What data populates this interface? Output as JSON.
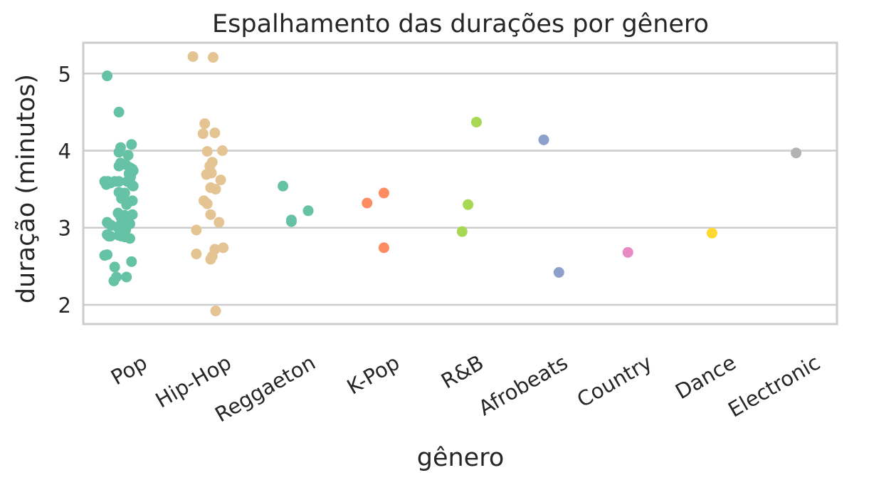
{
  "chart_data": {
    "type": "scatter",
    "title": "Espalhamento das durações por gênero",
    "xlabel": "gênero",
    "ylabel": "duração (minutos)",
    "ylim": [
      1.75,
      5.4
    ],
    "yticks": [
      2,
      3,
      4,
      5
    ],
    "grid": true,
    "categories": [
      "Pop",
      "Hip-Hop",
      "Reggaeton",
      "K-Pop",
      "R&B",
      "Afrobeats",
      "Country",
      "Dance",
      "Electronic"
    ],
    "colors": [
      "#66c2a5",
      "#e5c494",
      "#66c2a5",
      "#fc8d62",
      "#a6d854",
      "#8da0cb",
      "#e78ac3",
      "#ffd92f",
      "#b3b3b3"
    ],
    "series": [
      {
        "category": "Pop",
        "points": [
          [
            -0.19,
            4.97
          ],
          [
            -0.05,
            4.5
          ],
          [
            0.1,
            4.08
          ],
          [
            -0.03,
            4.04
          ],
          [
            -0.05,
            3.98
          ],
          [
            0.06,
            3.94
          ],
          [
            0.03,
            3.82
          ],
          [
            -0.03,
            3.84
          ],
          [
            0.08,
            3.78
          ],
          [
            0.11,
            3.76
          ],
          [
            -0.05,
            3.8
          ],
          [
            0.12,
            3.74
          ],
          [
            0.07,
            3.7
          ],
          [
            0.09,
            3.66
          ],
          [
            -0.22,
            3.6
          ],
          [
            -0.18,
            3.6
          ],
          [
            -0.15,
            3.58
          ],
          [
            -0.1,
            3.6
          ],
          [
            -0.05,
            3.6
          ],
          [
            0.05,
            3.6
          ],
          [
            0.1,
            3.56
          ],
          [
            0.12,
            3.54
          ],
          [
            -0.2,
            3.56
          ],
          [
            -0.05,
            3.46
          ],
          [
            0.02,
            3.45
          ],
          [
            0.0,
            3.42
          ],
          [
            -0.02,
            3.38
          ],
          [
            0.06,
            3.33
          ],
          [
            0.11,
            3.35
          ],
          [
            0.04,
            3.3
          ],
          [
            -0.06,
            3.19
          ],
          [
            0.02,
            3.16
          ],
          [
            -0.03,
            3.14
          ],
          [
            0.11,
            3.17
          ],
          [
            0.03,
            3.12
          ],
          [
            -0.19,
            3.07
          ],
          [
            -0.17,
            3.05
          ],
          [
            -0.14,
            3.03
          ],
          [
            -0.03,
            3.04
          ],
          [
            0.08,
            3.05
          ],
          [
            -0.06,
            3.0
          ],
          [
            0.0,
            2.99
          ],
          [
            0.03,
            2.97
          ],
          [
            -0.19,
            2.91
          ],
          [
            -0.17,
            2.89
          ],
          [
            -0.15,
            2.89
          ],
          [
            -0.05,
            2.9
          ],
          [
            -0.02,
            2.89
          ],
          [
            0.02,
            2.88
          ],
          [
            0.08,
            2.86
          ],
          [
            -0.22,
            2.64
          ],
          [
            -0.19,
            2.65
          ],
          [
            0.1,
            2.56
          ],
          [
            -0.1,
            2.49
          ],
          [
            -0.08,
            2.36
          ],
          [
            0.04,
            2.36
          ],
          [
            -0.11,
            2.31
          ]
        ]
      },
      {
        "category": "Hip-Hop",
        "points": [
          [
            -0.17,
            5.22
          ],
          [
            0.07,
            5.21
          ],
          [
            -0.03,
            4.35
          ],
          [
            0.09,
            4.23
          ],
          [
            -0.05,
            4.22
          ],
          [
            0.18,
            4.0
          ],
          [
            0.0,
            3.99
          ],
          [
            0.06,
            3.85
          ],
          [
            0.03,
            3.8
          ],
          [
            0.05,
            3.71
          ],
          [
            -0.01,
            3.69
          ],
          [
            0.16,
            3.62
          ],
          [
            0.04,
            3.52
          ],
          [
            0.1,
            3.5
          ],
          [
            -0.04,
            3.35
          ],
          [
            0.0,
            3.31
          ],
          [
            0.04,
            3.17
          ],
          [
            0.14,
            3.07
          ],
          [
            -0.13,
            2.97
          ],
          [
            0.19,
            2.74
          ],
          [
            0.09,
            2.72
          ],
          [
            -0.13,
            2.66
          ],
          [
            0.06,
            2.63
          ],
          [
            0.04,
            2.59
          ],
          [
            0.1,
            1.92
          ]
        ]
      },
      {
        "category": "Reggaeton",
        "points": [
          [
            -0.1,
            3.54
          ],
          [
            0.2,
            3.22
          ],
          [
            0.0,
            3.1
          ],
          [
            0.0,
            3.08
          ]
        ]
      },
      {
        "category": "K-Pop",
        "points": [
          [
            -0.1,
            3.32
          ],
          [
            0.1,
            3.45
          ],
          [
            0.1,
            2.74
          ]
        ]
      },
      {
        "category": "R&B",
        "points": [
          [
            0.2,
            4.37
          ],
          [
            0.1,
            3.3
          ],
          [
            0.03,
            2.95
          ]
        ]
      },
      {
        "category": "Afrobeats",
        "points": [
          [
            0.0,
            4.14
          ],
          [
            0.18,
            2.42
          ]
        ]
      },
      {
        "category": "Country",
        "points": [
          [
            0.0,
            2.68
          ]
        ]
      },
      {
        "category": "Dance",
        "points": [
          [
            0.0,
            2.93
          ]
        ]
      },
      {
        "category": "Electronic",
        "points": [
          [
            0.0,
            3.97
          ]
        ]
      }
    ]
  }
}
